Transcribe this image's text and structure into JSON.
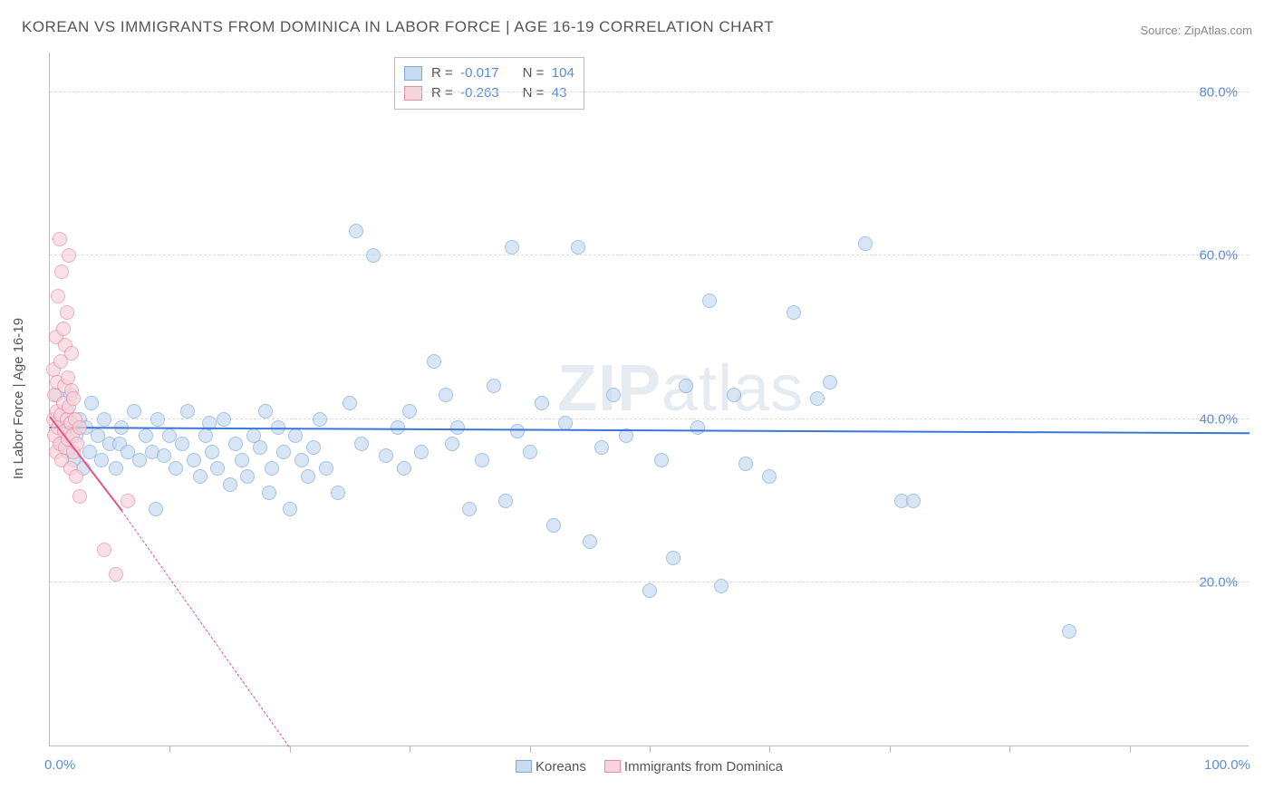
{
  "title": "KOREAN VS IMMIGRANTS FROM DOMINICA IN LABOR FORCE | AGE 16-19 CORRELATION CHART",
  "source_prefix": "Source: ",
  "source_name": "ZipAtlas.com",
  "ylabel": "In Labor Force | Age 16-19",
  "watermark": "ZIPatlas",
  "chart": {
    "type": "scatter",
    "background_color": "#ffffff",
    "grid_color": "#dddddd",
    "axis_color": "#bbbbbb",
    "xlim": [
      0,
      100
    ],
    "ylim": [
      0,
      85
    ],
    "xtick_positions": [
      10,
      20,
      30,
      40,
      50,
      60,
      70,
      80,
      90
    ],
    "xtick_labels": {
      "0": "0.0%",
      "100": "100.0%"
    },
    "ytick_positions": [
      20,
      40,
      60,
      80
    ],
    "ytick_labels": {
      "20": "20.0%",
      "40": "40.0%",
      "60": "60.0%",
      "80": "80.0%"
    },
    "label_color": "#5b8dd6",
    "point_radius": 8,
    "series": [
      {
        "name": "Koreans",
        "fill": "#c8dbf2",
        "stroke": "#7fa9d8",
        "fill_opacity": 0.7,
        "trend": {
          "color": "#3b78d6",
          "width": 2.5,
          "dash": "solid",
          "x1": 0,
          "y1": 39.2,
          "x2": 100,
          "y2": 38.5
        },
        "R": "-0.017",
        "N": "104",
        "points": [
          [
            0.5,
            43
          ],
          [
            0.8,
            40
          ],
          [
            1,
            37
          ],
          [
            1.2,
            39
          ],
          [
            1.4,
            41
          ],
          [
            1.5,
            36
          ],
          [
            1.7,
            43
          ],
          [
            2,
            35
          ],
          [
            2.2,
            38
          ],
          [
            2.5,
            40
          ],
          [
            2.8,
            34
          ],
          [
            3,
            39
          ],
          [
            3.3,
            36
          ],
          [
            3.5,
            42
          ],
          [
            4,
            38
          ],
          [
            4.3,
            35
          ],
          [
            4.5,
            40
          ],
          [
            5,
            37
          ],
          [
            5.5,
            34
          ],
          [
            5.8,
            37
          ],
          [
            6,
            39
          ],
          [
            6.5,
            36
          ],
          [
            7,
            41
          ],
          [
            7.5,
            35
          ],
          [
            8,
            38
          ],
          [
            8.5,
            36
          ],
          [
            8.8,
            29
          ],
          [
            9,
            40
          ],
          [
            9.5,
            35.5
          ],
          [
            10,
            38
          ],
          [
            10.5,
            34
          ],
          [
            11,
            37
          ],
          [
            11.5,
            41
          ],
          [
            12,
            35
          ],
          [
            12.5,
            33
          ],
          [
            13,
            38
          ],
          [
            13.3,
            39.5
          ],
          [
            13.5,
            36
          ],
          [
            14,
            34
          ],
          [
            14.5,
            40
          ],
          [
            15,
            32
          ],
          [
            15.5,
            37
          ],
          [
            16,
            35
          ],
          [
            16.5,
            33
          ],
          [
            17,
            38
          ],
          [
            17.5,
            36.5
          ],
          [
            18,
            41
          ],
          [
            18.3,
            31
          ],
          [
            18.5,
            34
          ],
          [
            19,
            39
          ],
          [
            19.5,
            36
          ],
          [
            20,
            29
          ],
          [
            20.5,
            38
          ],
          [
            21,
            35
          ],
          [
            21.5,
            33
          ],
          [
            22,
            36.5
          ],
          [
            22.5,
            40
          ],
          [
            23,
            34
          ],
          [
            24,
            31
          ],
          [
            25,
            42
          ],
          [
            25.5,
            63
          ],
          [
            26,
            37
          ],
          [
            27,
            60
          ],
          [
            28,
            35.5
          ],
          [
            29,
            39
          ],
          [
            29.5,
            34
          ],
          [
            30,
            41
          ],
          [
            31,
            36
          ],
          [
            32,
            47
          ],
          [
            33,
            43
          ],
          [
            33.5,
            37
          ],
          [
            34,
            39
          ],
          [
            35,
            29
          ],
          [
            36,
            35
          ],
          [
            37,
            44
          ],
          [
            38,
            30
          ],
          [
            38.5,
            61
          ],
          [
            39,
            38.5
          ],
          [
            40,
            36
          ],
          [
            41,
            42
          ],
          [
            42,
            27
          ],
          [
            43,
            39.5
          ],
          [
            44,
            61
          ],
          [
            45,
            25
          ],
          [
            46,
            36.5
          ],
          [
            47,
            43
          ],
          [
            48,
            38
          ],
          [
            50,
            19
          ],
          [
            51,
            35
          ],
          [
            52,
            23
          ],
          [
            53,
            44
          ],
          [
            54,
            39
          ],
          [
            55,
            54.5
          ],
          [
            56,
            19.5
          ],
          [
            57,
            43
          ],
          [
            58,
            34.5
          ],
          [
            60,
            33
          ],
          [
            62,
            53
          ],
          [
            64,
            42.5
          ],
          [
            65,
            44.5
          ],
          [
            68,
            61.5
          ],
          [
            71,
            30
          ],
          [
            72,
            30
          ],
          [
            85,
            14
          ]
        ]
      },
      {
        "name": "Immigrants from Dominica",
        "fill": "#f7d3dc",
        "stroke": "#e88ca3",
        "fill_opacity": 0.7,
        "trend": {
          "color": "#e75480",
          "width": 2.2,
          "dash": "solid",
          "x1": 0,
          "y1": 40.5,
          "x2": 6,
          "y2": 29,
          "extend_dash_to_x": 20,
          "extend_dash_to_y": 0
        },
        "R": "-0.263",
        "N": "43",
        "points": [
          [
            0.3,
            40
          ],
          [
            0.3,
            46
          ],
          [
            0.4,
            38
          ],
          [
            0.4,
            43
          ],
          [
            0.5,
            36
          ],
          [
            0.5,
            50
          ],
          [
            0.6,
            41
          ],
          [
            0.6,
            44.5
          ],
          [
            0.7,
            39
          ],
          [
            0.7,
            55
          ],
          [
            0.8,
            37
          ],
          [
            0.8,
            62
          ],
          [
            0.9,
            40.5
          ],
          [
            0.9,
            47
          ],
          [
            1.0,
            35
          ],
          [
            1.0,
            58
          ],
          [
            1.1,
            42
          ],
          [
            1.1,
            51
          ],
          [
            1.2,
            38.5
          ],
          [
            1.2,
            44
          ],
          [
            1.3,
            36.5
          ],
          [
            1.3,
            49
          ],
          [
            1.4,
            40
          ],
          [
            1.4,
            53
          ],
          [
            1.5,
            37.5
          ],
          [
            1.5,
            45
          ],
          [
            1.6,
            41.5
          ],
          [
            1.6,
            60
          ],
          [
            1.7,
            34
          ],
          [
            1.7,
            39.5
          ],
          [
            1.8,
            43.5
          ],
          [
            1.8,
            48
          ],
          [
            1.9,
            38
          ],
          [
            2.0,
            36
          ],
          [
            2.0,
            42.5
          ],
          [
            2.1,
            40
          ],
          [
            2.2,
            33
          ],
          [
            2.3,
            37
          ],
          [
            2.5,
            39
          ],
          [
            4.5,
            24
          ],
          [
            5.5,
            21
          ],
          [
            6.5,
            30
          ],
          [
            2.5,
            30.5
          ]
        ]
      }
    ]
  },
  "legend_top": {
    "border_color": "#bbbbbb",
    "rows": [
      {
        "swatch_fill": "#c8dbf2",
        "swatch_stroke": "#7fa9d8",
        "R_label": "R =",
        "R": "-0.017",
        "N_label": "N =",
        "N": "104"
      },
      {
        "swatch_fill": "#f7d3dc",
        "swatch_stroke": "#e88ca3",
        "R_label": "R =",
        "R": "-0.263",
        "N_label": "N =",
        "N": "43"
      }
    ]
  },
  "legend_bottom": [
    {
      "swatch_fill": "#c8dbf2",
      "swatch_stroke": "#7fa9d8",
      "label": "Koreans"
    },
    {
      "swatch_fill": "#f7d3dc",
      "swatch_stroke": "#e88ca3",
      "label": "Immigrants from Dominica"
    }
  ]
}
